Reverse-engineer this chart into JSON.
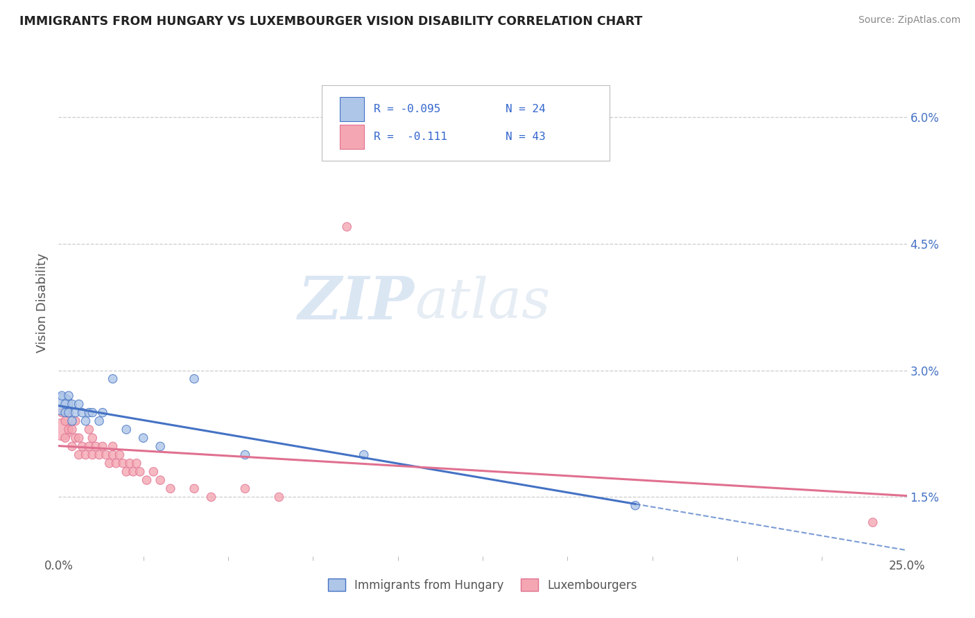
{
  "title": "IMMIGRANTS FROM HUNGARY VS LUXEMBOURGER VISION DISABILITY CORRELATION CHART",
  "source": "Source: ZipAtlas.com",
  "ylabel": "Vision Disability",
  "xlim": [
    0.0,
    0.25
  ],
  "ylim": [
    0.008,
    0.068
  ],
  "xtick_vals": [
    0.0,
    0.25
  ],
  "xticklabels": [
    "0.0%",
    "25.0%"
  ],
  "yticks_right": [
    0.015,
    0.03,
    0.045,
    0.06
  ],
  "yticklabels_right": [
    "1.5%",
    "3.0%",
    "4.5%",
    "6.0%"
  ],
  "color_blue": "#aec6e8",
  "color_pink": "#f4a7b2",
  "color_blue_line": "#4472c4",
  "color_pink_line": "#e07090",
  "color_blue_dark": "#4472c4",
  "watermark_zip": "ZIP",
  "watermark_atlas": "atlas",
  "legend_label_blue": "Immigrants from Hungary",
  "legend_label_pink": "Luxembourgers",
  "blue_x": [
    0.001,
    0.001,
    0.002,
    0.002,
    0.003,
    0.003,
    0.004,
    0.004,
    0.005,
    0.006,
    0.007,
    0.008,
    0.009,
    0.01,
    0.012,
    0.013,
    0.016,
    0.02,
    0.025,
    0.03,
    0.04,
    0.055,
    0.09,
    0.17
  ],
  "blue_y": [
    0.026,
    0.027,
    0.025,
    0.026,
    0.025,
    0.027,
    0.024,
    0.026,
    0.025,
    0.026,
    0.025,
    0.024,
    0.025,
    0.025,
    0.024,
    0.025,
    0.029,
    0.023,
    0.022,
    0.021,
    0.029,
    0.02,
    0.02,
    0.014
  ],
  "pink_x": [
    0.001,
    0.001,
    0.002,
    0.002,
    0.003,
    0.003,
    0.004,
    0.004,
    0.005,
    0.005,
    0.006,
    0.006,
    0.007,
    0.008,
    0.009,
    0.009,
    0.01,
    0.01,
    0.011,
    0.012,
    0.013,
    0.014,
    0.015,
    0.016,
    0.016,
    0.017,
    0.018,
    0.019,
    0.02,
    0.021,
    0.022,
    0.023,
    0.024,
    0.026,
    0.028,
    0.03,
    0.033,
    0.04,
    0.045,
    0.055,
    0.065,
    0.085,
    0.24
  ],
  "pink_y": [
    0.023,
    0.025,
    0.022,
    0.024,
    0.023,
    0.025,
    0.021,
    0.023,
    0.022,
    0.024,
    0.02,
    0.022,
    0.021,
    0.02,
    0.021,
    0.023,
    0.02,
    0.022,
    0.021,
    0.02,
    0.021,
    0.02,
    0.019,
    0.02,
    0.021,
    0.019,
    0.02,
    0.019,
    0.018,
    0.019,
    0.018,
    0.019,
    0.018,
    0.017,
    0.018,
    0.017,
    0.016,
    0.016,
    0.015,
    0.016,
    0.015,
    0.047,
    0.012
  ],
  "blue_sizes_main": 80,
  "blue_size_large": 500,
  "pink_sizes_main": 80,
  "pink_size_large": 500,
  "background_color": "#ffffff",
  "grid_color": "#cccccc",
  "grid_linestyle": "--"
}
